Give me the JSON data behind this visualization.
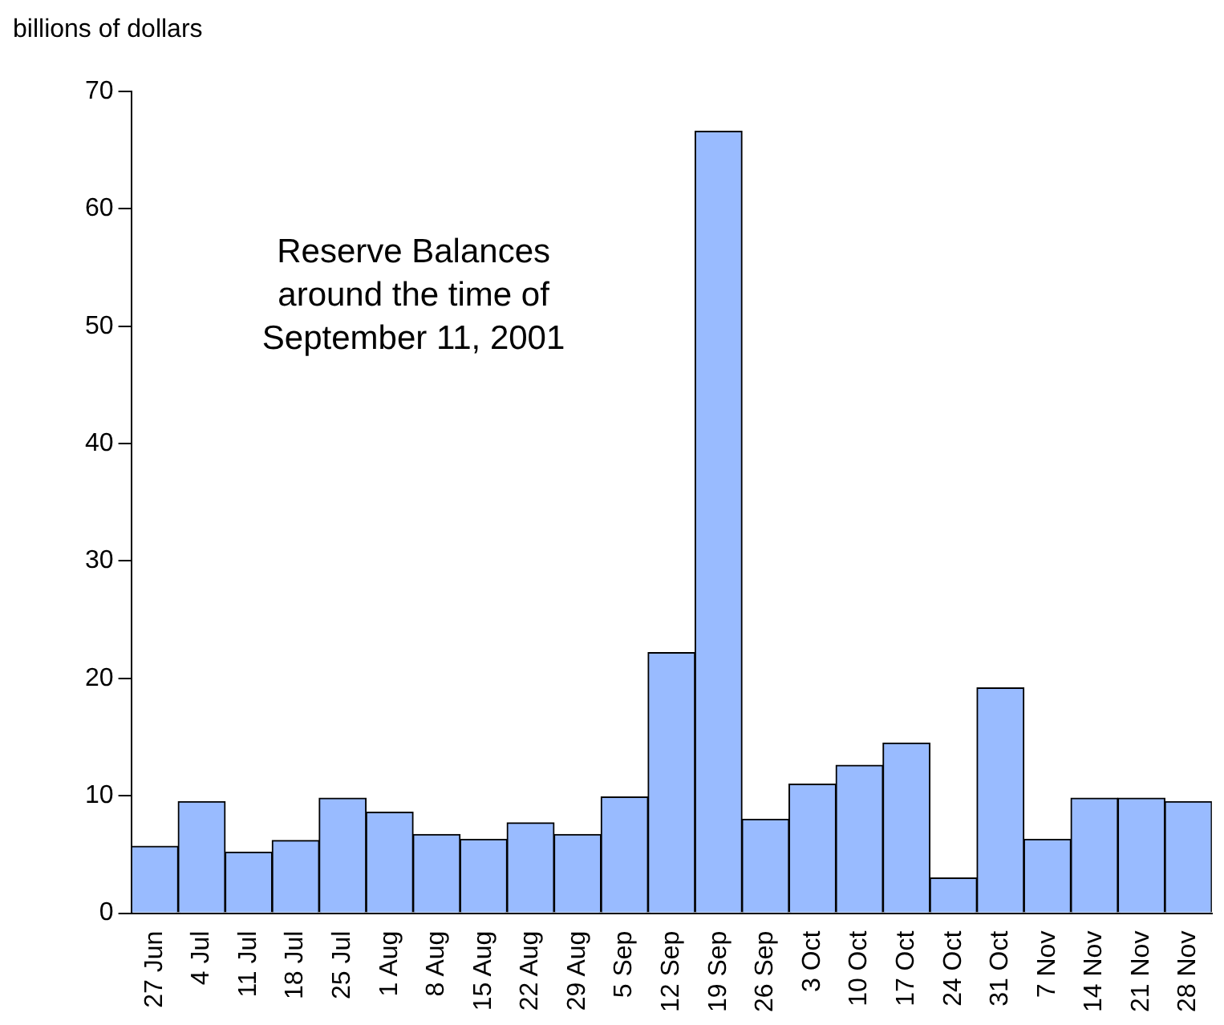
{
  "chart_data": {
    "type": "bar",
    "title": "Reserve Balances\naround the time of\nSeptember 11, 2001",
    "ylabel": "billions of dollars",
    "categories": [
      "27 Jun",
      "4 Jul",
      "11 Jul",
      "18 Jul",
      "25 Jul",
      "1 Aug",
      "8 Aug",
      "15 Aug",
      "22 Aug",
      "29 Aug",
      "5 Sep",
      "12 Sep",
      "19 Sep",
      "26 Sep",
      "3 Oct",
      "10 Oct",
      "17 Oct",
      "24 Oct",
      "31 Oct",
      "7 Nov",
      "14 Nov",
      "21 Nov",
      "28 Nov"
    ],
    "values": [
      5.7,
      9.5,
      5.2,
      6.2,
      9.8,
      8.6,
      6.7,
      6.3,
      7.7,
      6.7,
      9.9,
      22.2,
      66.6,
      8.0,
      11.0,
      12.6,
      14.5,
      3.0,
      19.2,
      6.3,
      9.8,
      9.8,
      9.5
    ],
    "color": "#99bbff",
    "ylim": [
      0,
      70
    ],
    "yticks": [
      0,
      10,
      20,
      30,
      40,
      50,
      60,
      70
    ],
    "grid": false,
    "legend": false
  }
}
